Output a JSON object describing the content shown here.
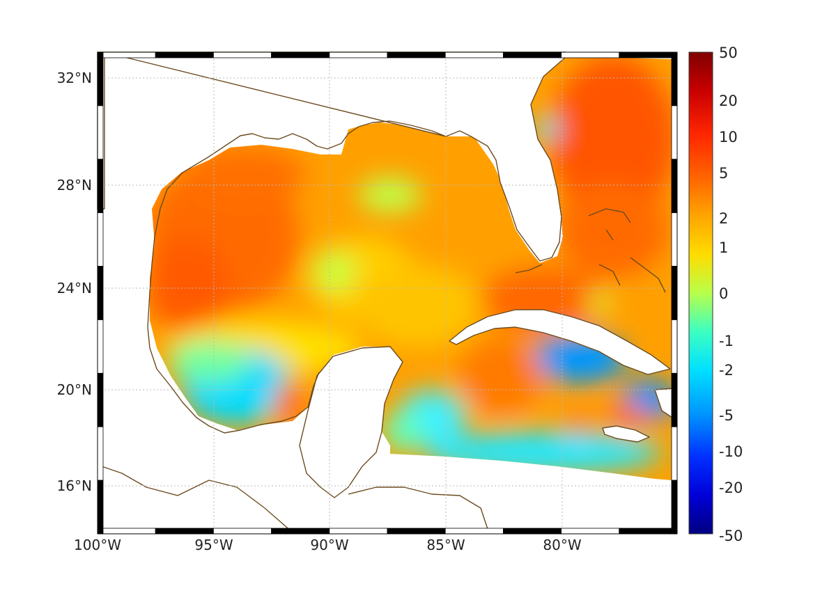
{
  "map": {
    "lon_ticks": [
      "100°W",
      "95°W",
      "90°W",
      "85°W",
      "80°W"
    ],
    "lat_ticks": [
      "32°N",
      "28°N",
      "24°N",
      "20°N",
      "16°N"
    ],
    "lon_values": [
      -100,
      -95,
      -90,
      -85,
      -80
    ],
    "lat_values": [
      32,
      28,
      24,
      20,
      16
    ],
    "extent": {
      "lon": [
        -100,
        -75
      ],
      "lat": [
        14.5,
        33
      ]
    },
    "coastline_color": "#6b4a1e",
    "gridlines": true
  },
  "colorbar": {
    "labels": [
      "50",
      "20",
      "10",
      "5",
      "2",
      "1",
      "0",
      "-1",
      "-2",
      "-5",
      "-10",
      "-20",
      "-50"
    ],
    "colors": [
      "#800000",
      "#cc0000",
      "#ff2a00",
      "#ff6a00",
      "#ffa500",
      "#ffd400",
      "#ffff00",
      "#a6ff5a",
      "#3fffbf",
      "#00dfff",
      "#009fff",
      "#0050ff",
      "#0010ff",
      "#0000b0",
      "#000080"
    ]
  },
  "chart_data": {
    "type": "heatmap",
    "colorscale_levels": [
      50,
      20,
      10,
      5,
      2,
      1,
      0,
      -1,
      -2,
      -5,
      -10,
      -20,
      -50
    ],
    "x_ticks": [
      -100,
      -95,
      -90,
      -85,
      -80
    ],
    "y_ticks": [
      32,
      28,
      24,
      20,
      16
    ]
  }
}
